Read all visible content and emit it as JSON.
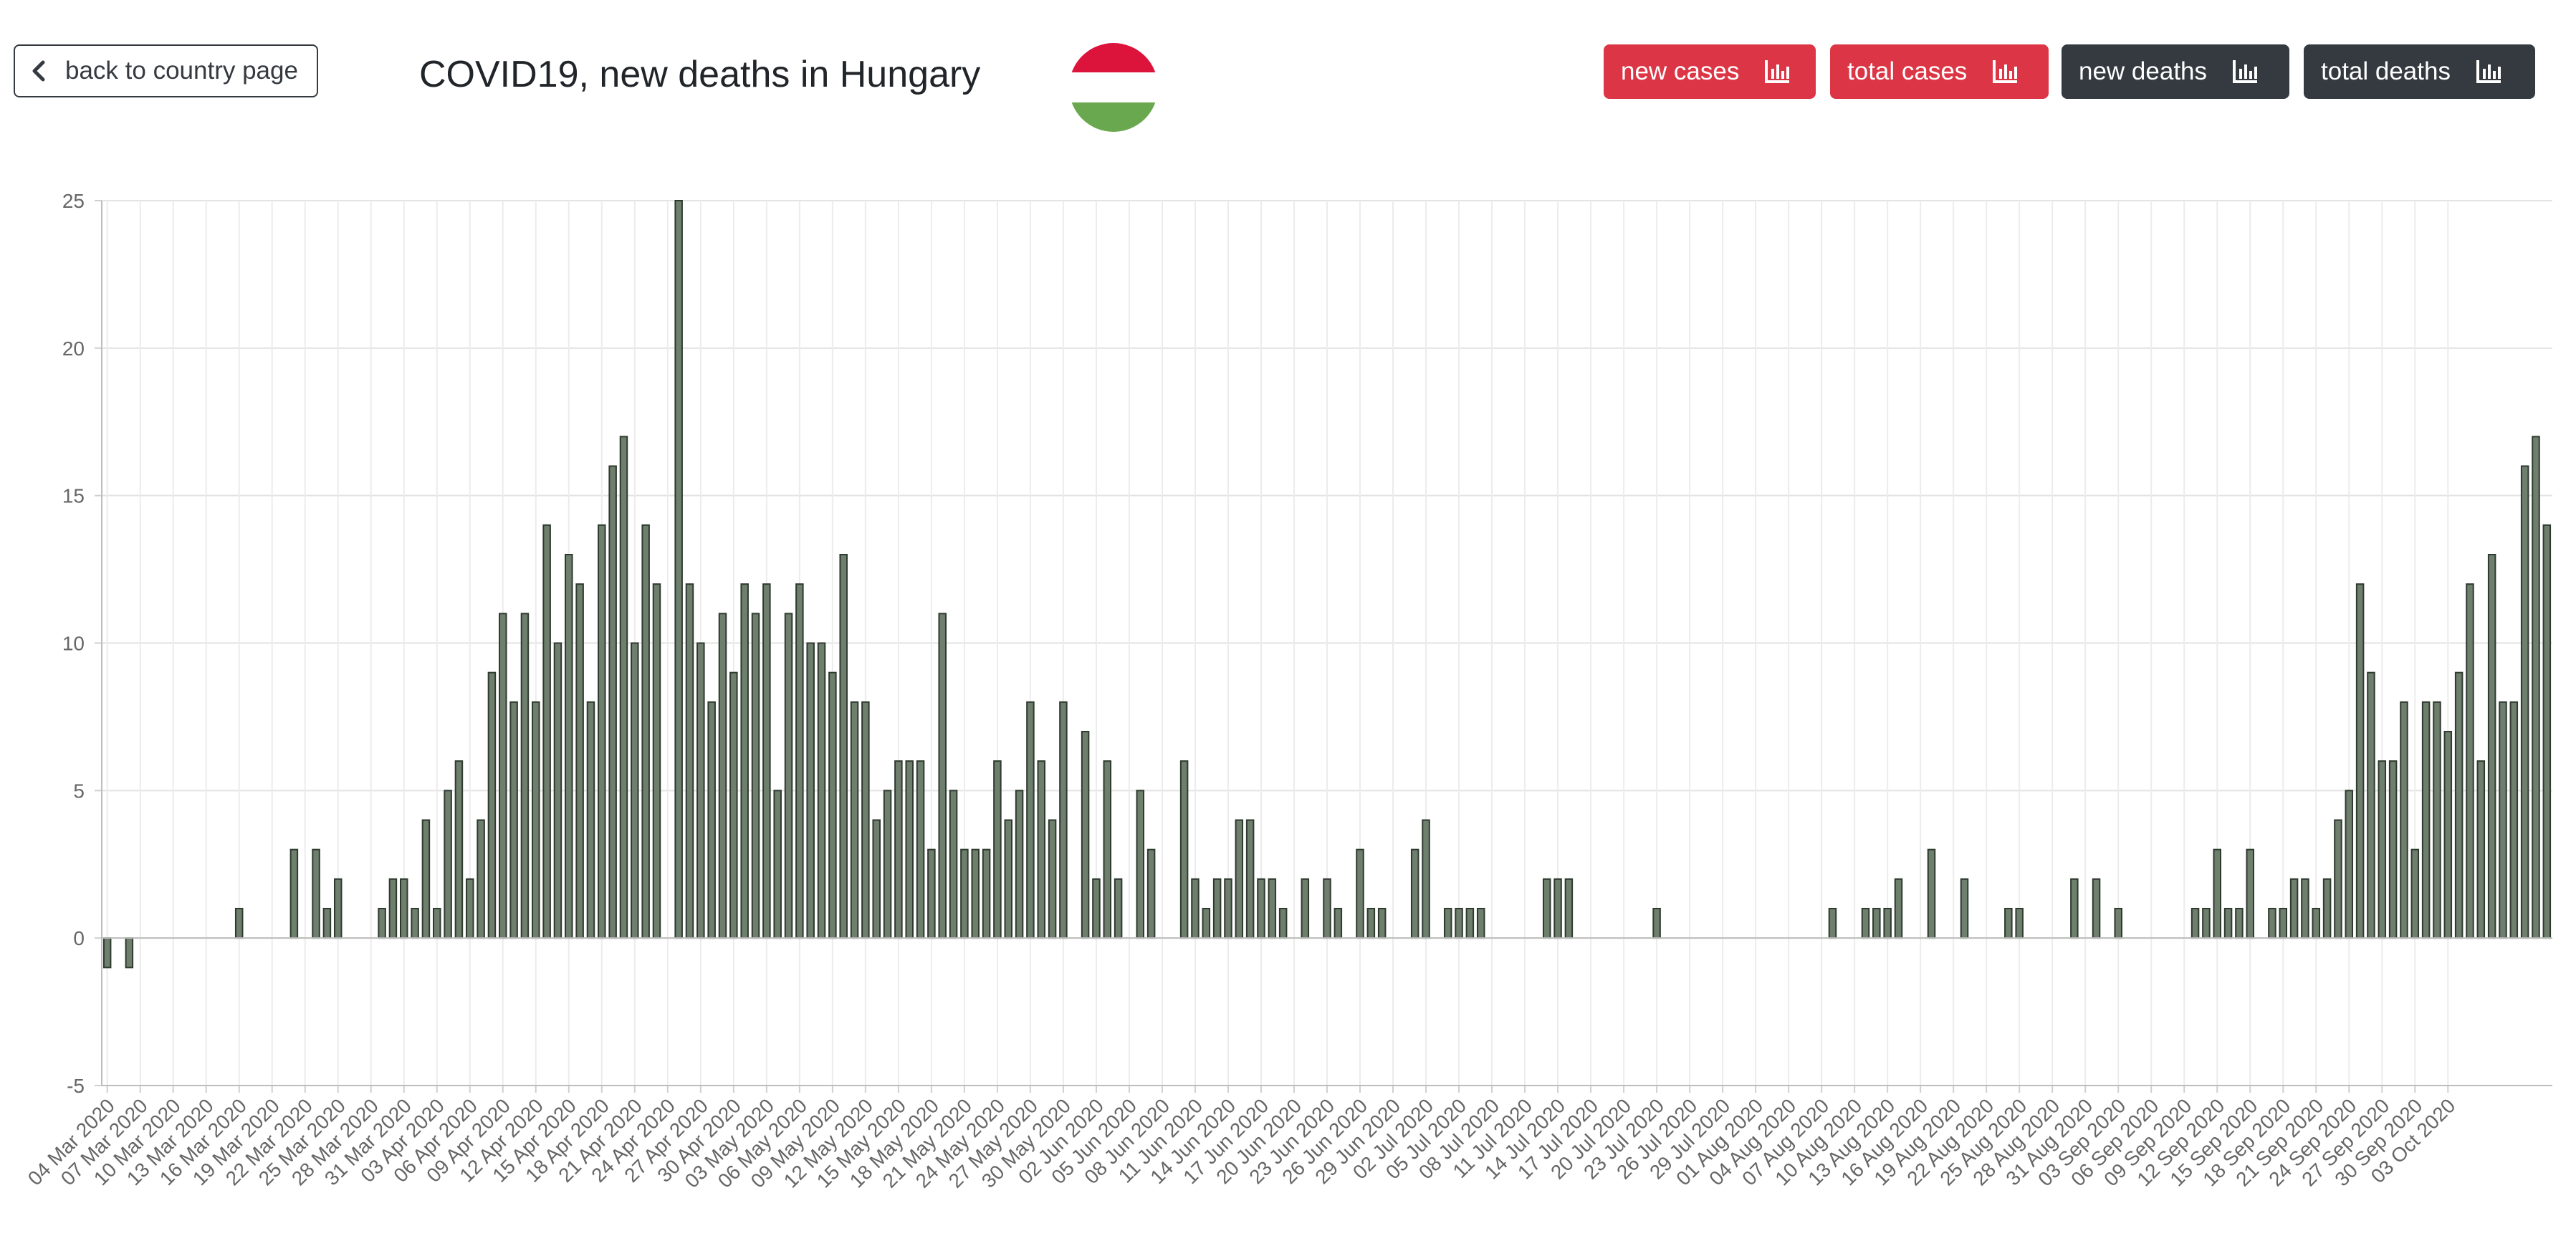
{
  "header": {
    "back_label": "back to country page",
    "title": "COVID19, new deaths in Hungary",
    "flag_icon": "hungary-flag-icon",
    "buttons": [
      {
        "label": "new cases",
        "style": "red",
        "icon": "bar-chart-icon"
      },
      {
        "label": "total cases",
        "style": "red",
        "icon": "bar-chart-icon"
      },
      {
        "label": "new deaths",
        "style": "dark",
        "icon": "bar-chart-icon"
      },
      {
        "label": "total deaths",
        "style": "dark",
        "icon": "bar-chart-icon"
      }
    ]
  },
  "colors": {
    "bar_fill": "#6e7f6e",
    "bar_stroke": "#2f3a2f",
    "red_button": "#dc3545",
    "dark_button": "#343a40",
    "flag": [
      "#dc143c",
      "#ffffff",
      "#6aa84f"
    ]
  },
  "chart_data": {
    "type": "bar",
    "title": "",
    "xlabel": "",
    "ylabel": "",
    "start_date": "2020-03-04",
    "ylim": [
      -5,
      25
    ],
    "yticks": [
      -5,
      0,
      5,
      10,
      15,
      20,
      25
    ],
    "grid": true,
    "x_tick_labels": [
      "04 Mar 2020",
      "07 Mar 2020",
      "10 Mar 2020",
      "13 Mar 2020",
      "16 Mar 2020",
      "19 Mar 2020",
      "22 Mar 2020",
      "25 Mar 2020",
      "28 Mar 2020",
      "31 Mar 2020",
      "03 Apr 2020",
      "06 Apr 2020",
      "09 Apr 2020",
      "12 Apr 2020",
      "15 Apr 2020",
      "18 Apr 2020",
      "21 Apr 2020",
      "24 Apr 2020",
      "27 Apr 2020",
      "30 Apr 2020",
      "03 May 2020",
      "06 May 2020",
      "09 May 2020",
      "12 May 2020",
      "15 May 2020",
      "18 May 2020",
      "21 May 2020",
      "24 May 2020",
      "27 May 2020",
      "30 May 2020",
      "02 Jun 2020",
      "05 Jun 2020",
      "08 Jun 2020",
      "11 Jun 2020",
      "14 Jun 2020",
      "17 Jun 2020",
      "20 Jun 2020",
      "23 Jun 2020",
      "26 Jun 2020",
      "29 Jun 2020",
      "02 Jul 2020",
      "05 Jul 2020",
      "08 Jul 2020",
      "11 Jul 2020",
      "14 Jul 2020",
      "17 Jul 2020",
      "20 Jul 2020",
      "23 Jul 2020",
      "26 Jul 2020",
      "29 Jul 2020",
      "01 Aug 2020",
      "04 Aug 2020",
      "07 Aug 2020",
      "10 Aug 2020",
      "13 Aug 2020",
      "16 Aug 2020",
      "19 Aug 2020",
      "22 Aug 2020",
      "25 Aug 2020",
      "28 Aug 2020",
      "31 Aug 2020",
      "03 Sep 2020",
      "06 Sep 2020",
      "09 Sep 2020",
      "12 Sep 2020",
      "15 Sep 2020",
      "18 Sep 2020",
      "21 Sep 2020",
      "24 Sep 2020",
      "27 Sep 2020",
      "30 Sep 2020",
      "03 Oct 2020"
    ],
    "values": [
      -1,
      0,
      -1,
      0,
      0,
      0,
      0,
      0,
      0,
      0,
      0,
      0,
      1,
      0,
      0,
      0,
      0,
      3,
      0,
      3,
      1,
      2,
      0,
      0,
      0,
      1,
      2,
      2,
      1,
      4,
      1,
      5,
      6,
      2,
      4,
      9,
      11,
      8,
      11,
      8,
      14,
      10,
      13,
      12,
      8,
      14,
      16,
      17,
      10,
      14,
      12,
      0,
      25,
      12,
      10,
      8,
      11,
      9,
      12,
      11,
      12,
      5,
      11,
      12,
      10,
      10,
      9,
      13,
      8,
      8,
      4,
      5,
      6,
      6,
      6,
      3,
      11,
      5,
      3,
      3,
      3,
      6,
      4,
      5,
      8,
      6,
      4,
      8,
      0,
      7,
      2,
      6,
      2,
      0,
      5,
      3,
      0,
      0,
      6,
      2,
      1,
      2,
      2,
      4,
      4,
      2,
      2,
      1,
      0,
      2,
      0,
      2,
      1,
      0,
      3,
      1,
      1,
      0,
      0,
      3,
      4,
      0,
      1,
      1,
      1,
      1,
      0,
      0,
      0,
      0,
      0,
      2,
      2,
      2,
      0,
      0,
      0,
      0,
      0,
      0,
      0,
      1,
      0,
      0,
      0,
      0,
      0,
      0,
      0,
      0,
      0,
      0,
      0,
      0,
      0,
      0,
      0,
      1,
      0,
      0,
      1,
      1,
      1,
      2,
      0,
      0,
      3,
      0,
      0,
      2,
      0,
      0,
      0,
      1,
      1,
      0,
      0,
      0,
      0,
      2,
      0,
      2,
      0,
      1,
      0,
      0,
      0,
      0,
      0,
      0,
      1,
      1,
      3,
      1,
      1,
      3,
      0,
      1,
      1,
      2,
      2,
      1,
      2,
      4,
      5,
      12,
      9,
      6,
      6,
      8,
      3,
      8,
      8,
      7,
      9,
      12,
      6,
      13,
      8,
      8,
      16,
      17,
      14
    ]
  }
}
